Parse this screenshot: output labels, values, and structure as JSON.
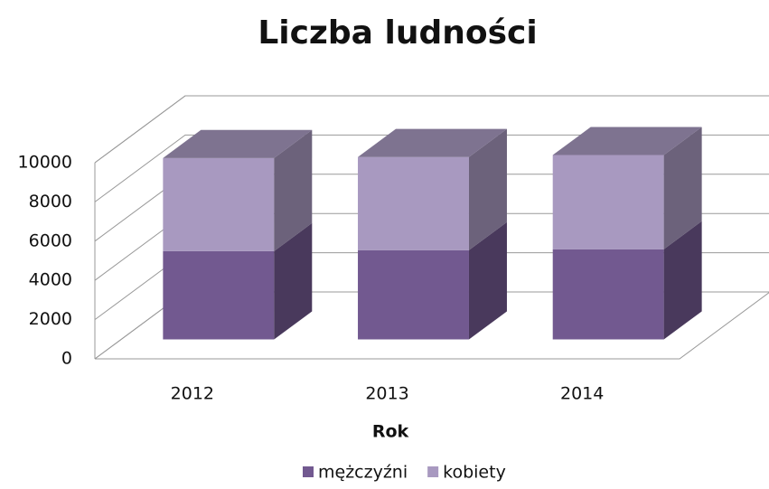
{
  "chart_data": {
    "type": "bar3d_stacked",
    "title": "Liczba ludności",
    "x_label": "Rok",
    "categories": [
      "2012",
      "2013",
      "2014"
    ],
    "series": [
      {
        "name": "mężczyźni",
        "color": "#725990",
        "values": [
          4500,
          4550,
          4600
        ]
      },
      {
        "name": "kobiety",
        "color": "#a899c0",
        "values": [
          4750,
          4750,
          4800
        ]
      }
    ],
    "ylim": [
      0,
      10000
    ],
    "yticks": [
      0,
      2000,
      4000,
      6000,
      8000,
      10000
    ],
    "grid": true,
    "legend": "bottom"
  }
}
